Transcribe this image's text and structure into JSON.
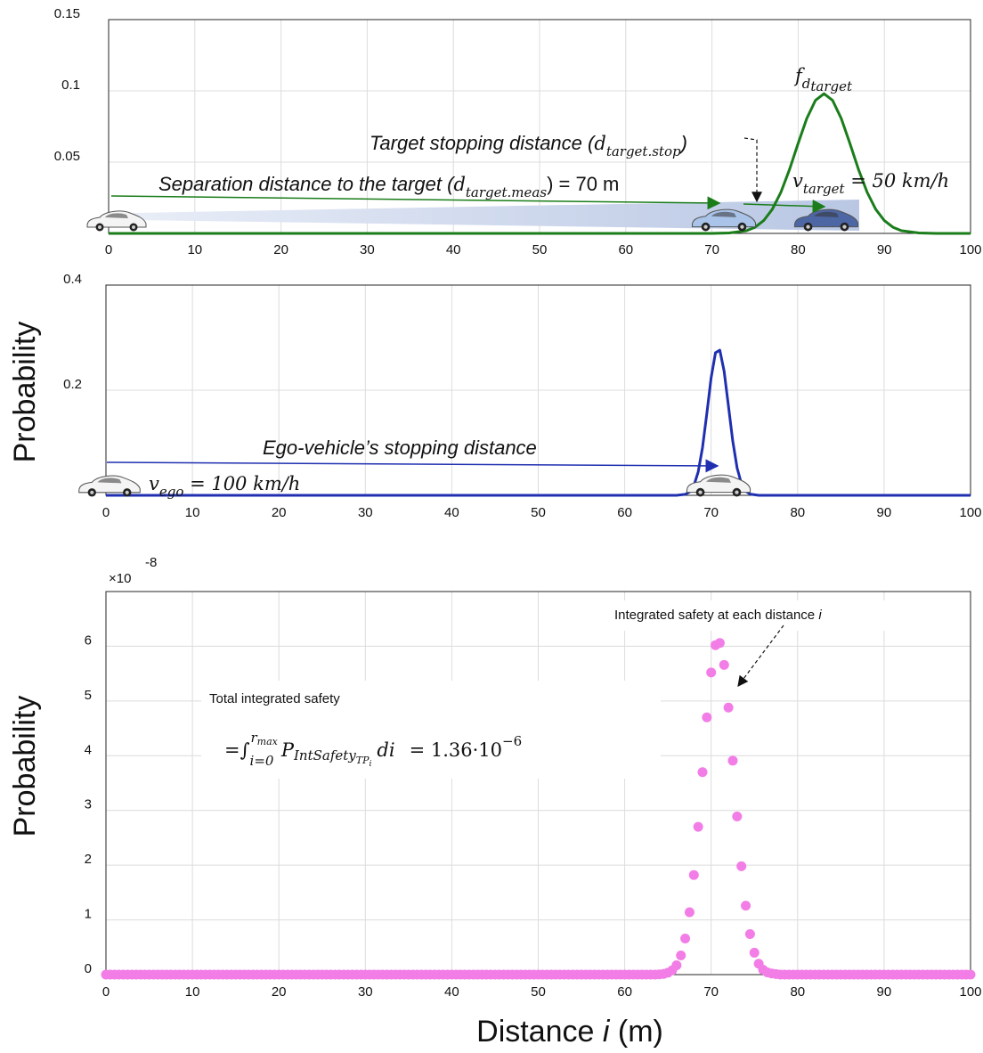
{
  "chart_data": [
    {
      "type": "line",
      "color": "#1a7d1a",
      "grid": true,
      "xlim": [
        0,
        100
      ],
      "xticks": [
        0,
        10,
        20,
        30,
        40,
        50,
        60,
        70,
        80,
        90,
        100
      ],
      "ylim": [
        0,
        0.15
      ],
      "yticks": [
        0.05,
        0.1,
        0.15
      ],
      "x": [
        0,
        70,
        72,
        74,
        75,
        76,
        77,
        78,
        79,
        80,
        81,
        82,
        83,
        84,
        85,
        86,
        87,
        88,
        89,
        90,
        91,
        92,
        94,
        96,
        100
      ],
      "values": [
        0,
        0,
        0.0003,
        0.0019,
        0.0043,
        0.009,
        0.0169,
        0.0289,
        0.0449,
        0.0632,
        0.0806,
        0.0933,
        0.098,
        0.0933,
        0.0806,
        0.0632,
        0.0449,
        0.0289,
        0.0169,
        0.009,
        0.0043,
        0.0019,
        0.0003,
        0,
        0
      ],
      "annotations": [
        [
          "f",
          "d",
          "target"
        ],
        [
          "Target stopping distance (",
          "d",
          "target.stop",
          ")"
        ],
        [
          "Separation distance to the target (",
          "d",
          "target.meas",
          ") = 70 m"
        ],
        [
          "v",
          "target",
          " = 50 km/h"
        ]
      ]
    },
    {
      "type": "line",
      "color": "#1f2fb0",
      "grid": true,
      "xlim": [
        0,
        100
      ],
      "xticks": [
        0,
        10,
        20,
        30,
        40,
        50,
        60,
        70,
        80,
        90,
        100
      ],
      "ylim": [
        0,
        0.4
      ],
      "yticks": [
        0.2,
        0.4
      ],
      "ylabel": "Probability",
      "x": [
        0,
        66,
        67,
        67.5,
        68,
        68.5,
        69,
        69.5,
        70,
        70.5,
        71,
        71.5,
        72,
        72.5,
        73,
        73.5,
        74,
        74.5,
        75.5,
        100
      ],
      "values": [
        0,
        0,
        0.0019,
        0.0064,
        0.0184,
        0.0446,
        0.0909,
        0.1557,
        0.2242,
        0.2713,
        0.2761,
        0.2362,
        0.1699,
        0.1029,
        0.0521,
        0.0223,
        0.008,
        0.0024,
        0,
        0
      ],
      "annotations": [
        "Ego-vehicle’s stopping distance",
        [
          "v",
          "ego",
          " = 100 km/h"
        ]
      ]
    },
    {
      "type": "scatter",
      "color": "#f27de6",
      "grid": true,
      "xlim": [
        0,
        100
      ],
      "xticks": [
        0,
        10,
        20,
        30,
        40,
        50,
        60,
        70,
        80,
        90,
        100
      ],
      "ylim": [
        0,
        7
      ],
      "yticks": [
        0,
        1,
        2,
        3,
        4,
        5,
        6
      ],
      "y_multiplier": "×10",
      "y_exponent": "-8",
      "ylabel": "Probability",
      "xlabel": [
        "Distance ",
        "i",
        " (m)"
      ],
      "x": [
        0,
        0.5,
        1,
        1.5,
        2,
        2.5,
        3,
        3.5,
        4,
        4.5,
        5,
        5.5,
        6,
        6.5,
        7,
        7.5,
        8,
        8.5,
        9,
        9.5,
        10,
        10.5,
        11,
        11.5,
        12,
        12.5,
        13,
        13.5,
        14,
        14.5,
        15,
        15.5,
        16,
        16.5,
        17,
        17.5,
        18,
        18.5,
        19,
        19.5,
        20,
        20.5,
        21,
        21.5,
        22,
        22.5,
        23,
        23.5,
        24,
        24.5,
        25,
        25.5,
        26,
        26.5,
        27,
        27.5,
        28,
        28.5,
        29,
        29.5,
        30,
        30.5,
        31,
        31.5,
        32,
        32.5,
        33,
        33.5,
        34,
        34.5,
        35,
        35.5,
        36,
        36.5,
        37,
        37.5,
        38,
        38.5,
        39,
        39.5,
        40,
        40.5,
        41,
        41.5,
        42,
        42.5,
        43,
        43.5,
        44,
        44.5,
        45,
        45.5,
        46,
        46.5,
        47,
        47.5,
        48,
        48.5,
        49,
        49.5,
        50,
        50.5,
        51,
        51.5,
        52,
        52.5,
        53,
        53.5,
        54,
        54.5,
        55,
        55.5,
        56,
        56.5,
        57,
        57.5,
        58,
        58.5,
        59,
        59.5,
        60,
        60.5,
        61,
        61.5,
        62,
        62.5,
        63,
        63.5,
        64,
        64.5,
        65,
        65.5,
        66,
        66.5,
        67,
        67.5,
        68,
        68.5,
        69,
        69.5,
        70,
        70.5,
        71,
        71.5,
        72,
        72.5,
        73,
        73.5,
        74,
        74.5,
        75,
        75.5,
        76,
        76.5,
        77,
        77.5,
        78,
        78.5,
        79,
        79.5,
        80,
        80.5,
        81,
        81.5,
        82,
        82.5,
        83,
        83.5,
        84,
        84.5,
        85,
        85.5,
        86,
        86.5,
        87,
        87.5,
        88,
        88.5,
        89,
        89.5,
        90,
        90.5,
        91,
        91.5,
        92,
        92.5,
        93,
        93.5,
        94,
        94.5,
        95,
        95.5,
        96,
        96.5,
        97,
        97.5,
        98,
        98.5,
        99,
        99.5,
        100
      ],
      "values": [
        0,
        0,
        0,
        0,
        0,
        0,
        0,
        0,
        0,
        0,
        0,
        0,
        0,
        0,
        0,
        0,
        0,
        0,
        0,
        0,
        0,
        0,
        0,
        0,
        0,
        0,
        0,
        0,
        0,
        0,
        0,
        0,
        0,
        0,
        0,
        0,
        0,
        0,
        0,
        0,
        0,
        0,
        0,
        0,
        0,
        0,
        0,
        0,
        0,
        0,
        0,
        0,
        0,
        0,
        0,
        0,
        0,
        0,
        0,
        0,
        0,
        0,
        0,
        0,
        0,
        0,
        0,
        0,
        0,
        0,
        0,
        0,
        0,
        0,
        0,
        0,
        0,
        0,
        0,
        0,
        0,
        0,
        0,
        0,
        0,
        0,
        0,
        0,
        0,
        0,
        0,
        0,
        0,
        0,
        0,
        0,
        0,
        0,
        0,
        0,
        0,
        0,
        0,
        0,
        0,
        0,
        0,
        0,
        0,
        0,
        0,
        0,
        0,
        0,
        0,
        0,
        0,
        0,
        0,
        0,
        0,
        0,
        0,
        0,
        0,
        0,
        0,
        0,
        0.005,
        0.013,
        0.034,
        0.08,
        0.17,
        0.35,
        0.66,
        1.14,
        1.82,
        2.7,
        3.7,
        4.7,
        5.52,
        6.02,
        6.06,
        5.66,
        4.88,
        3.91,
        2.89,
        1.98,
        1.26,
        0.74,
        0.4,
        0.2,
        0.09,
        0.04,
        0.02,
        0.01,
        0,
        0,
        0,
        0,
        0,
        0,
        0,
        0,
        0,
        0,
        0,
        0,
        0,
        0,
        0,
        0,
        0,
        0,
        0,
        0,
        0,
        0,
        0,
        0,
        0,
        0,
        0,
        0,
        0,
        0,
        0,
        0,
        0,
        0,
        0,
        0,
        0,
        0,
        0,
        0,
        0,
        0,
        0,
        0,
        0
      ],
      "annotations": [
        [
          "Integrated safety at each distance ",
          "i"
        ],
        [
          "Total integrated safety"
        ],
        [
          "=∫",
          "i=0",
          "r",
          "max",
          "P",
          "IntSafety",
          "TP",
          "i",
          "di",
          "= 1.36·10",
          "−6"
        ]
      ]
    }
  ]
}
